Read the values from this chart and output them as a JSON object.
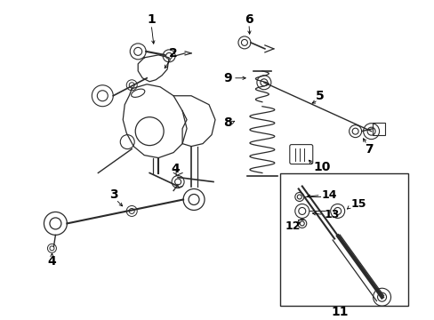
{
  "background_color": "#ffffff",
  "line_color": "#2a2a2a",
  "label_fontsize": 10,
  "fig_width": 4.89,
  "fig_height": 3.6,
  "dpi": 100
}
